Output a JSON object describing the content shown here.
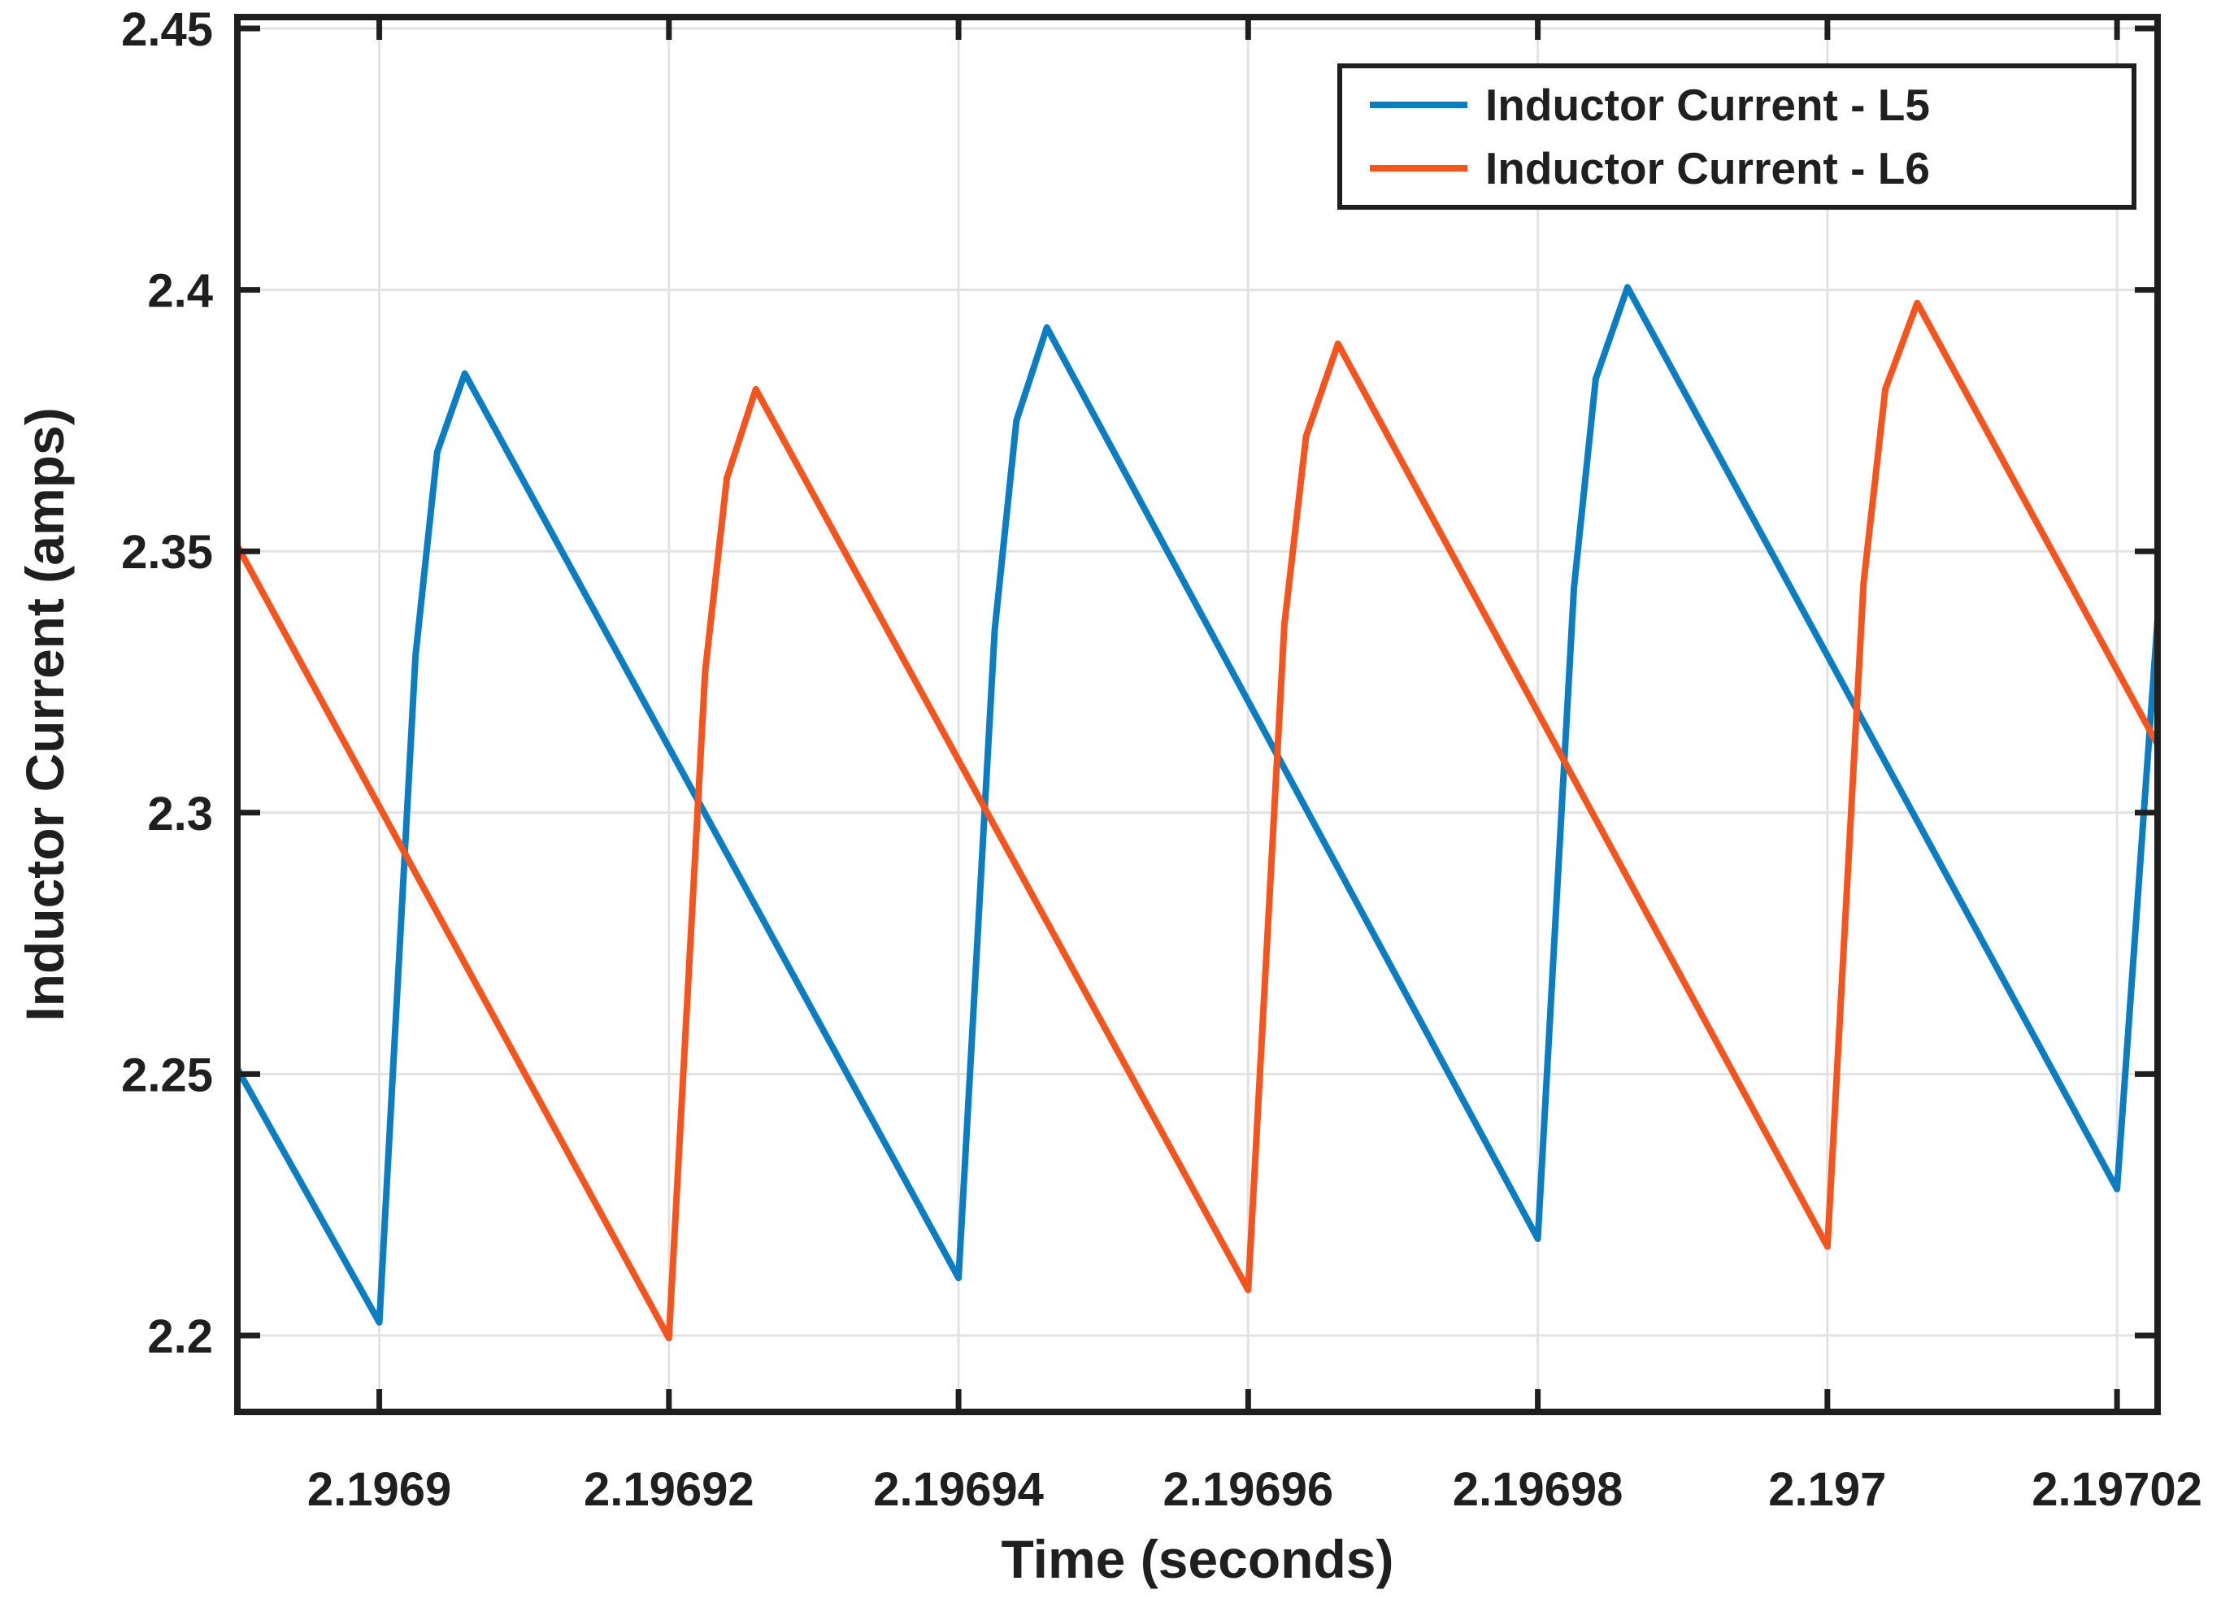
{
  "figure": {
    "background": "#ffffff",
    "axis_color": "#1f1f1f",
    "grid_color": "#e2e2e2",
    "text_color": "#1f1f1f"
  },
  "chart_data": {
    "type": "line",
    "title": "",
    "xlabel": "Time (seconds)",
    "ylabel": "Inductor Current (amps)",
    "grid": true,
    "legend_position": "northeast",
    "xlim": [
      2.1968902,
      2.1970228
    ],
    "ylim": [
      2.18538,
      2.45218
    ],
    "x_ticks": [
      {
        "value": 2.1969,
        "label": "2.1969"
      },
      {
        "value": 2.19692,
        "label": "2.19692"
      },
      {
        "value": 2.19694,
        "label": "2.19694"
      },
      {
        "value": 2.19696,
        "label": "2.19696"
      },
      {
        "value": 2.19698,
        "label": "2.19698"
      },
      {
        "value": 2.197,
        "label": "2.197"
      },
      {
        "value": 2.19702,
        "label": "2.19702"
      }
    ],
    "y_ticks": [
      {
        "value": 2.2,
        "label": "2.2"
      },
      {
        "value": 2.25,
        "label": "2.25"
      },
      {
        "value": 2.3,
        "label": "2.3"
      },
      {
        "value": 2.35,
        "label": "2.35"
      },
      {
        "value": 2.4,
        "label": "2.4"
      },
      {
        "value": 2.45,
        "label": "2.45"
      }
    ],
    "series": [
      {
        "name": "Inductor Current - L5",
        "color": "#0d7dc1",
        "points": [
          [
            2.1968902,
            2.251
          ],
          [
            2.1969,
            2.2025
          ],
          [
            2.1969025,
            2.33
          ],
          [
            2.196904,
            2.369
          ],
          [
            2.1969059,
            2.384
          ],
          [
            2.19694,
            2.211
          ],
          [
            2.1969425,
            2.335
          ],
          [
            2.196944,
            2.375
          ],
          [
            2.1969461,
            2.3928
          ],
          [
            2.19698,
            2.2185
          ],
          [
            2.1969825,
            2.343
          ],
          [
            2.196984,
            2.383
          ],
          [
            2.1969862,
            2.4005
          ],
          [
            2.19702,
            2.228
          ],
          [
            2.1970228,
            2.337
          ]
        ]
      },
      {
        "name": "Inductor Current - L6",
        "color": "#f4541e",
        "points": [
          [
            2.1968902,
            2.351
          ],
          [
            2.19692,
            2.1995
          ],
          [
            2.1969225,
            2.327
          ],
          [
            2.196924,
            2.364
          ],
          [
            2.196926,
            2.381
          ],
          [
            2.19696,
            2.2087
          ],
          [
            2.1969625,
            2.336
          ],
          [
            2.196964,
            2.372
          ],
          [
            2.1969662,
            2.3897
          ],
          [
            2.197,
            2.217
          ],
          [
            2.1970025,
            2.344
          ],
          [
            2.197004,
            2.381
          ],
          [
            2.1970062,
            2.3975
          ],
          [
            2.1970228,
            2.313
          ]
        ]
      }
    ]
  }
}
